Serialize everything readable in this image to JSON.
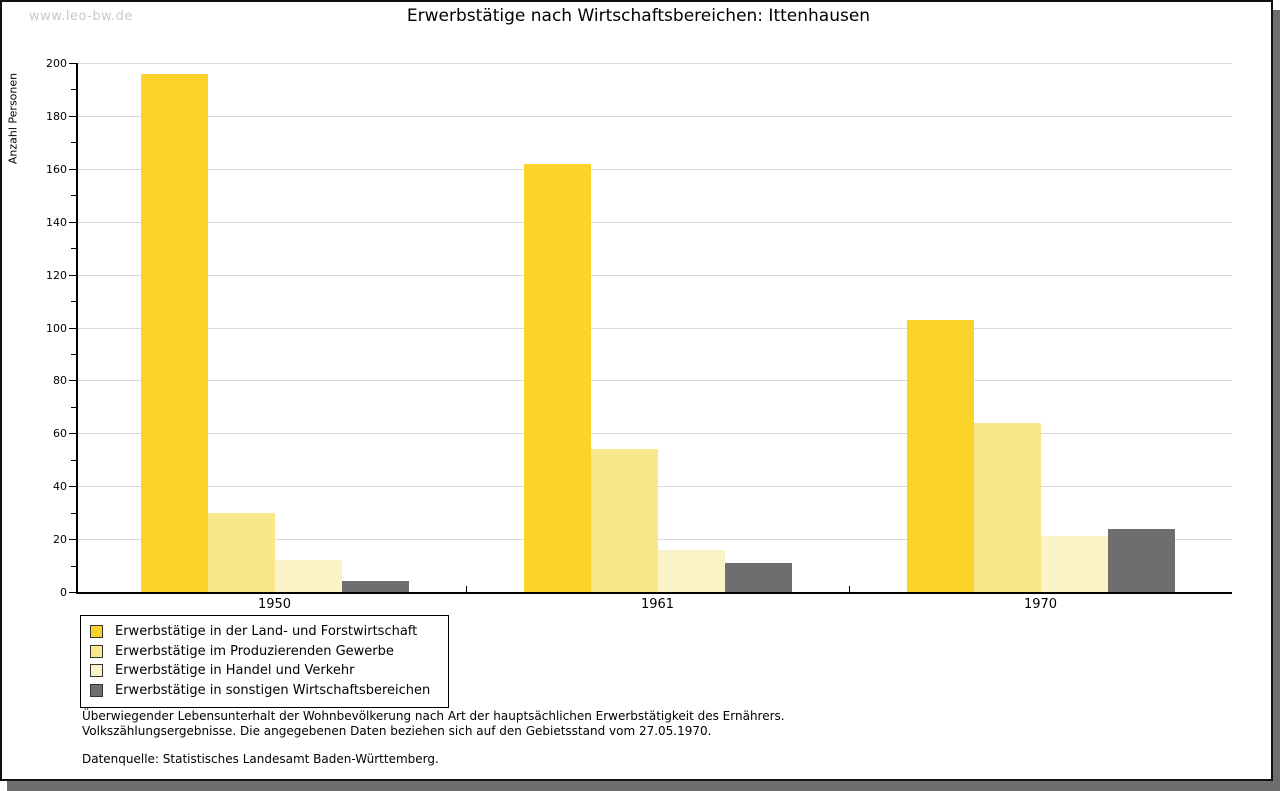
{
  "watermark": "www.leo-bw.de",
  "title": "Erwerbstätige nach Wirtschaftsbereichen: Ittenhausen",
  "chart_data": {
    "type": "bar",
    "title": "Erwerbstätige nach Wirtschaftsbereichen: Ittenhausen",
    "xlabel": "",
    "ylabel": "Anzahl Personen",
    "ylim": [
      0,
      200
    ],
    "ytick_step": 20,
    "yminor_step": 10,
    "grid": true,
    "legend_position": "bottom-left",
    "categories": [
      "1950",
      "1961",
      "1970"
    ],
    "series": [
      {
        "name": "Erwerbstätige in der Land- und Forstwirtschaft",
        "color": "#fbd32b",
        "values": [
          196,
          162,
          103
        ]
      },
      {
        "name": "Erwerbstätige im Produzierenden Gewerbe",
        "color": "#f9e88b",
        "values": [
          30,
          54,
          64
        ]
      },
      {
        "name": "Erwerbstätige in Handel und Verkehr",
        "color": "#fbf3c8",
        "values": [
          12,
          16,
          21
        ]
      },
      {
        "name": "Erwerbstätige in sonstigen Wirtschaftsbereichen",
        "color": "#6e6e6e",
        "values": [
          4,
          11,
          24
        ]
      }
    ]
  },
  "footnotes": {
    "line1": "Überwiegender Lebensunterhalt der Wohnbevölkerung nach Art der hauptsächlichen Erwerbstätigkeit des Ernährers.",
    "line2": "Volkszählungsergebnisse. Die angegebenen Daten beziehen sich auf den Gebietsstand vom 27.05.1970.",
    "source": "Datenquelle: Statistisches Landesamt Baden-Württemberg."
  },
  "colors": {
    "axis": "#000000",
    "gridline": "#dadada",
    "shadow": "#6e6e6e",
    "watermark": "#c9c9c9",
    "legend_border": "#000000",
    "swatch_border": "#333333"
  }
}
